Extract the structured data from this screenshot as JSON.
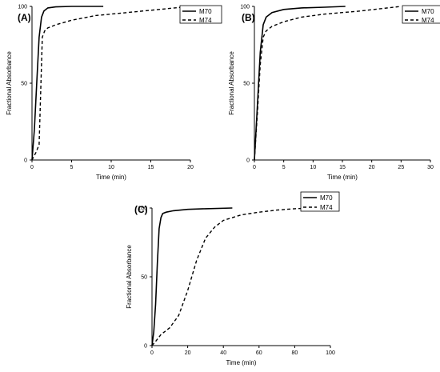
{
  "chart_data": [
    {
      "type": "line",
      "panel_label": "(A)",
      "xlabel": "Time (min)",
      "ylabel": "Fractional Absorbance",
      "xlim": [
        0,
        20
      ],
      "ylim": [
        0,
        100
      ],
      "xticks": [
        0,
        5,
        10,
        15,
        20
      ],
      "yticks": [
        0,
        50,
        100
      ],
      "legend": "top-right",
      "series": [
        {
          "name": "M70",
          "style": "solid",
          "x": [
            0,
            0.3,
            0.6,
            0.9,
            1.2,
            1.5,
            2,
            3,
            5,
            9
          ],
          "y": [
            0,
            20,
            50,
            80,
            93,
            97,
            99,
            99.7,
            100,
            100
          ]
        },
        {
          "name": "M74",
          "style": "dashed",
          "x": [
            0,
            0.5,
            0.9,
            1.1,
            1.3,
            1.6,
            2,
            3,
            5,
            8,
            12,
            20
          ],
          "y": [
            0,
            5,
            10,
            45,
            80,
            84,
            86,
            88,
            91,
            94,
            96,
            100
          ]
        }
      ]
    },
    {
      "type": "line",
      "panel_label": "(B)",
      "xlabel": "Time (min)",
      "ylabel": "Fractional Absorbance",
      "xlim": [
        0,
        30
      ],
      "ylim": [
        0,
        100
      ],
      "xticks": [
        0,
        5,
        10,
        15,
        20,
        25,
        30
      ],
      "yticks": [
        0,
        50,
        100
      ],
      "legend": "top-right",
      "series": [
        {
          "name": "M70",
          "style": "solid",
          "x": [
            0,
            0.5,
            1,
            1.5,
            2,
            3,
            5,
            8,
            12,
            15.5
          ],
          "y": [
            0,
            35,
            70,
            88,
            93,
            96,
            98,
            99,
            99.5,
            100
          ]
        },
        {
          "name": "M74",
          "style": "dashed",
          "x": [
            0,
            0.5,
            1,
            1.5,
            2,
            3,
            5,
            8,
            12,
            18,
            25
          ],
          "y": [
            0,
            30,
            62,
            80,
            84,
            87,
            90,
            93,
            95,
            97,
            100
          ]
        }
      ]
    },
    {
      "type": "line",
      "panel_label": "(C)",
      "xlabel": "Time (min)",
      "ylabel": "Fractional Absorbance",
      "xlim": [
        0,
        100
      ],
      "ylim": [
        0,
        100
      ],
      "xticks": [
        0,
        20,
        40,
        60,
        80,
        100
      ],
      "yticks": [
        0,
        50,
        100
      ],
      "legend": "top-right",
      "series": [
        {
          "name": "M70",
          "style": "solid",
          "x": [
            0,
            1,
            2,
            3,
            4,
            5,
            6,
            8,
            12,
            20,
            30,
            45
          ],
          "y": [
            0,
            10,
            30,
            60,
            85,
            93,
            96,
            97,
            98,
            99,
            99.5,
            100
          ]
        },
        {
          "name": "M74",
          "style": "dashed",
          "x": [
            0,
            2,
            5,
            10,
            15,
            20,
            25,
            30,
            35,
            40,
            50,
            60,
            70,
            80,
            90
          ],
          "y": [
            0,
            3,
            8,
            13,
            22,
            40,
            62,
            78,
            86,
            91,
            95,
            97,
            98.5,
            99.5,
            100
          ]
        }
      ]
    }
  ]
}
